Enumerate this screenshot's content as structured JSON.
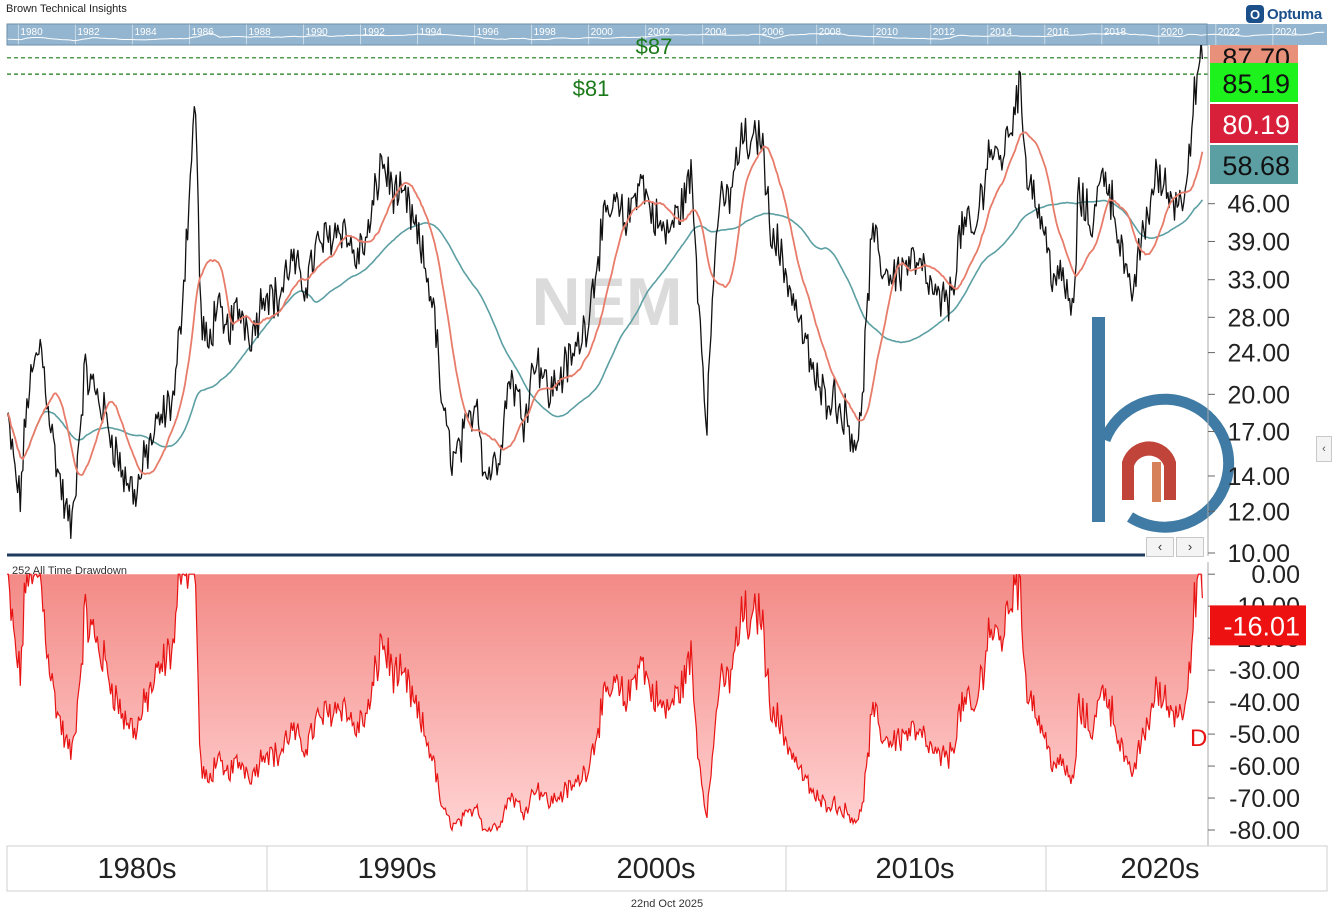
{
  "header": {
    "brand": "Brown Technical Insights",
    "logo_text": "Optuma"
  },
  "footer": {
    "date": "22nd Oct 2025"
  },
  "chart_data": [
    {
      "type": "line",
      "title": "NEM",
      "y_scale": "log",
      "ylim": [
        10,
        92
      ],
      "xlim": [
        1979.5,
        2025.9
      ],
      "y_ticks": [
        10,
        12,
        14,
        17,
        20,
        24,
        28,
        33,
        39,
        46
      ],
      "y_tick_labels": [
        "10.00",
        "12.00",
        "14.00",
        "17.00",
        "20.00",
        "24.00",
        "28.00",
        "33.00",
        "39.00",
        "46.00"
      ],
      "overview_years": [
        "1980",
        "1982",
        "1984",
        "1986",
        "1988",
        "1990",
        "1992",
        "1994",
        "1996",
        "1998",
        "2000",
        "2002",
        "2004",
        "2006",
        "2008",
        "2010",
        "2012",
        "2014",
        "2016",
        "2018",
        "2020",
        "2022",
        "2024"
      ],
      "decade_labels": [
        {
          "label": "1980s",
          "x": 1980
        },
        {
          "label": "1990s",
          "x": 1990
        },
        {
          "label": "2000s",
          "x": 2000
        },
        {
          "label": "2010s",
          "x": 2010
        },
        {
          "label": "2020s",
          "x": 2020
        }
      ],
      "hlines": [
        {
          "label": "$87",
          "value": 87,
          "color": "#1a7a1a"
        },
        {
          "label": "$81",
          "value": 81,
          "color": "#1a7a1a"
        }
      ],
      "value_tags": [
        {
          "value": 87.7,
          "label": "87.70",
          "color": "#e8907a"
        },
        {
          "value": 85.19,
          "label": "85.19",
          "color": "#1df21d"
        },
        {
          "value": 80.19,
          "label": "80.19",
          "color": "#d8203a"
        },
        {
          "value": 58.68,
          "label": "58.68",
          "color": "#5c9fa3"
        }
      ],
      "series": [
        {
          "name": "NEM",
          "color": "#111111",
          "x": [
            1979.5,
            1980,
            1980.3,
            1980.8,
            1981.3,
            1981.7,
            1982,
            1982.5,
            1983,
            1983.5,
            1984,
            1984.5,
            1985,
            1985.5,
            1986,
            1986.4,
            1986.8,
            1987,
            1987.3,
            1987.6,
            1987.9,
            1988.5,
            1989,
            1989.5,
            1990,
            1990.5,
            1991,
            1991.5,
            1992,
            1992.5,
            1993,
            1993.5,
            1994,
            1994.5,
            1995,
            1995.5,
            1996,
            1996.4,
            1996.8,
            1997.3,
            1997.7,
            1998,
            1998.5,
            1999,
            1999.5,
            2000,
            2000.5,
            2001,
            2001.5,
            2002,
            2002.5,
            2003,
            2003.5,
            2004,
            2004.5,
            2005,
            2005.5,
            2006,
            2006.3,
            2006.6,
            2007,
            2007.5,
            2008,
            2008.3,
            2008.7,
            2009,
            2009.5,
            2010,
            2010.5,
            2011,
            2011.5,
            2012,
            2012.5,
            2013,
            2013.5,
            2014,
            2014.5,
            2015,
            2015.5,
            2016,
            2016.5,
            2017,
            2017.5,
            2018,
            2018.3,
            2018.7,
            2019,
            2019.5,
            2020,
            2020.5,
            2020.8,
            2021,
            2021.5,
            2022,
            2022.5,
            2023,
            2023.5,
            2024,
            2024.5,
            2025,
            2025.3,
            2025.6,
            2025.8
          ],
          "y": [
            18,
            12.5,
            20,
            25,
            16,
            12.5,
            11,
            22,
            20,
            17,
            14,
            13,
            16,
            18,
            20,
            36,
            74,
            28,
            24,
            30,
            26,
            29,
            26,
            32,
            30,
            36,
            32,
            38,
            40,
            42,
            36,
            40,
            56,
            48,
            46,
            38,
            30,
            18,
            15,
            17,
            20,
            14,
            15,
            22,
            18,
            24,
            20,
            22,
            24,
            28,
            40,
            46,
            42,
            52,
            44,
            40,
            44,
            52,
            30,
            18,
            44,
            48,
            62,
            58,
            64,
            44,
            36,
            30,
            24,
            20,
            20,
            18,
            16,
            40,
            34,
            34,
            36,
            34,
            30,
            30,
            42,
            40,
            58,
            56,
            62,
            78,
            54,
            44,
            34,
            32,
            28,
            48,
            42,
            54,
            42,
            30,
            40,
            52,
            48,
            46,
            60,
            80,
            86.5
          ],
          "ma": [
            {
              "name": "Short MA",
              "color": "#e87c6a",
              "period": 3
            },
            {
              "name": "Long MA",
              "color": "#5c9fa3",
              "period": 11
            }
          ]
        }
      ]
    },
    {
      "type": "area",
      "title": "252 All Time Drawdown",
      "ylim": [
        -85,
        1
      ],
      "y_ticks": [
        0,
        -10,
        -20,
        -30,
        -40,
        -50,
        -60,
        -70,
        -80
      ],
      "y_tick_labels": [
        "0.00",
        "-10.00",
        "-20.00",
        "-30.00",
        "-40.00",
        "-50.00",
        "-60.00",
        "-70.00",
        "-80.00"
      ],
      "value_tags": [
        {
          "value": -16.01,
          "label": "-16.01",
          "color": "#ee1111"
        }
      ],
      "clipped_label": "D",
      "color": "#e81414"
    }
  ]
}
